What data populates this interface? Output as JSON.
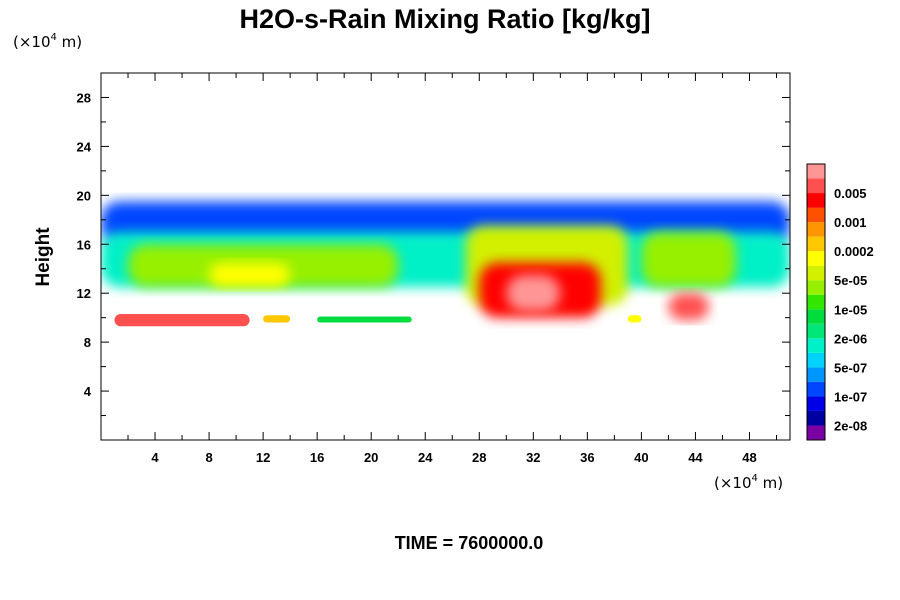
{
  "chart_data": {
    "type": "heatmap",
    "title": "H2O-s-Rain Mixing Ratio [kg/kg]",
    "ylabel": "Height",
    "x_unit": {
      "prefix": "(×10",
      "power": "4",
      "suffix": " m)"
    },
    "y_unit": {
      "prefix": "(×10",
      "power": "4",
      "suffix": " m)"
    },
    "xlim": [
      0,
      51
    ],
    "ylim": [
      0,
      30
    ],
    "xticks": [
      4,
      8,
      12,
      16,
      20,
      24,
      28,
      32,
      36,
      40,
      44,
      48
    ],
    "yticks": [
      4,
      8,
      12,
      16,
      20,
      24,
      28
    ],
    "xtick_labels": [
      "4",
      "8",
      "12",
      "16",
      "20",
      "24",
      "28",
      "32",
      "36",
      "40",
      "44",
      "48"
    ],
    "ytick_labels": [
      "4",
      "8",
      "12",
      "16",
      "20",
      "24",
      "28"
    ],
    "colorbar": {
      "colors": [
        "#7a00a6",
        "#0000a0",
        "#0000e6",
        "#0046ff",
        "#0096ff",
        "#00d2ff",
        "#00f0c8",
        "#00e678",
        "#00dc3c",
        "#32e600",
        "#96f000",
        "#d2f000",
        "#ffff00",
        "#ffc800",
        "#ff9600",
        "#ff5000",
        "#ff0000",
        "#ff5050",
        "#ff9696"
      ],
      "labels": [
        "2e-08",
        "1e-07",
        "5e-07",
        "2e-06",
        "1e-05",
        "5e-05",
        "0.0002",
        "0.001",
        "0.005"
      ]
    },
    "features": [
      {
        "x": [
          0,
          51
        ],
        "y": [
          16,
          19.5
        ],
        "level": 3
      },
      {
        "x": [
          0,
          51
        ],
        "y": [
          12.5,
          17
        ],
        "level": 6
      },
      {
        "x": [
          2,
          22
        ],
        "y": [
          12.5,
          16
        ],
        "level": 10
      },
      {
        "x": [
          8,
          14
        ],
        "y": [
          12.5,
          14.5
        ],
        "level": 12
      },
      {
        "x": [
          27,
          39
        ],
        "y": [
          11,
          17.5
        ],
        "level": 11
      },
      {
        "x": [
          28,
          37
        ],
        "y": [
          10,
          14.5
        ],
        "level": 16
      },
      {
        "x": [
          30,
          34
        ],
        "y": [
          10.5,
          13.5
        ],
        "level": 18
      },
      {
        "x": [
          40,
          47
        ],
        "y": [
          12.5,
          17
        ],
        "level": 10
      },
      {
        "x": [
          42,
          45
        ],
        "y": [
          9.8,
          12
        ],
        "level": 17
      },
      {
        "x": [
          1,
          11
        ],
        "y": [
          9.3,
          10.3
        ],
        "level": 17
      },
      {
        "x": [
          12,
          14
        ],
        "y": [
          9.6,
          10.2
        ],
        "level": 13
      },
      {
        "x": [
          16,
          23
        ],
        "y": [
          9.6,
          10.1
        ],
        "level": 8
      },
      {
        "x": [
          39,
          40
        ],
        "y": [
          9.6,
          10.2
        ],
        "level": 12
      }
    ],
    "footer": "TIME = 7600000.0"
  }
}
